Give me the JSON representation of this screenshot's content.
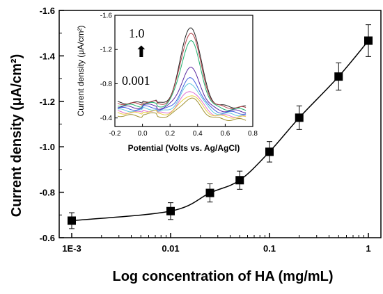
{
  "chart_data": [
    {
      "type": "scatter",
      "xlabel": "Log concentration of HA (mg/mL)",
      "ylabel": "Current density (μA/cm²)",
      "xscale": "log",
      "xlim": [
        0.001,
        1
      ],
      "ylim": [
        -0.6,
        -1.6
      ],
      "x_ticks": [
        0.001,
        0.01,
        0.1,
        1
      ],
      "x_tick_labels": [
        "1E-3",
        "0.01",
        "0.1",
        "1"
      ],
      "y_ticks": [
        -0.6,
        -0.8,
        -1.0,
        -1.2,
        -1.4,
        -1.6
      ],
      "y_tick_labels": [
        "-0.6",
        "-0.8",
        "-1.0",
        "-1.2",
        "-1.4",
        "-1.6"
      ],
      "grid": false,
      "legend": "none",
      "series": [
        {
          "x": [
            0.001,
            0.01,
            0.025,
            0.05,
            0.1,
            0.2,
            0.5,
            1.0
          ],
          "y": [
            -0.675,
            -0.717,
            -0.797,
            -0.853,
            -0.978,
            -1.128,
            -1.309,
            -1.467
          ],
          "error": [
            0.035,
            0.037,
            0.04,
            0.04,
            0.045,
            0.052,
            0.06,
            0.07
          ],
          "marker": "square",
          "fit_line": true,
          "color": "#000000"
        }
      ]
    },
    {
      "type": "line",
      "position": "inset",
      "xlabel": "Potential (Volts vs. Ag/AgCl)",
      "ylabel": "Current density (μA/cm²)",
      "xlim": [
        -0.2,
        0.8
      ],
      "ylim": [
        -0.3,
        -1.6
      ],
      "x_ticks": [
        -0.2,
        0.0,
        0.2,
        0.4,
        0.6,
        0.8
      ],
      "x_tick_labels": [
        "-0.2",
        "0.0",
        "0.2",
        "0.4",
        "0.6",
        "0.8"
      ],
      "y_ticks": [
        -0.4,
        -0.8,
        -1.2,
        -1.6
      ],
      "y_tick_labels": [
        "-0.4",
        "-0.8",
        "-1.2",
        "-1.6"
      ],
      "annotations": {
        "top": "1.0",
        "bottom": "0.001"
      },
      "peak_potential": 0.35,
      "peak_width": 0.1,
      "series": [
        {
          "peak": -1.47,
          "baseline": -0.55,
          "color": "#222222"
        },
        {
          "peak": -1.4,
          "baseline": -0.54,
          "color": "#b04048"
        },
        {
          "peak": -1.3,
          "baseline": -0.52,
          "color": "#20b070"
        },
        {
          "peak": -0.98,
          "baseline": -0.5,
          "color": "#5a28a0"
        },
        {
          "peak": -0.86,
          "baseline": -0.48,
          "color": "#4060e0"
        },
        {
          "peak": -0.8,
          "baseline": -0.46,
          "color": "#60c8e0"
        },
        {
          "peak": -0.72,
          "baseline": -0.44,
          "color": "#e070d0"
        },
        {
          "peak": -0.67,
          "baseline": -0.43,
          "color": "#e8d040"
        },
        {
          "peak": -0.63,
          "baseline": -0.4,
          "color": "#a09030"
        }
      ]
    }
  ]
}
